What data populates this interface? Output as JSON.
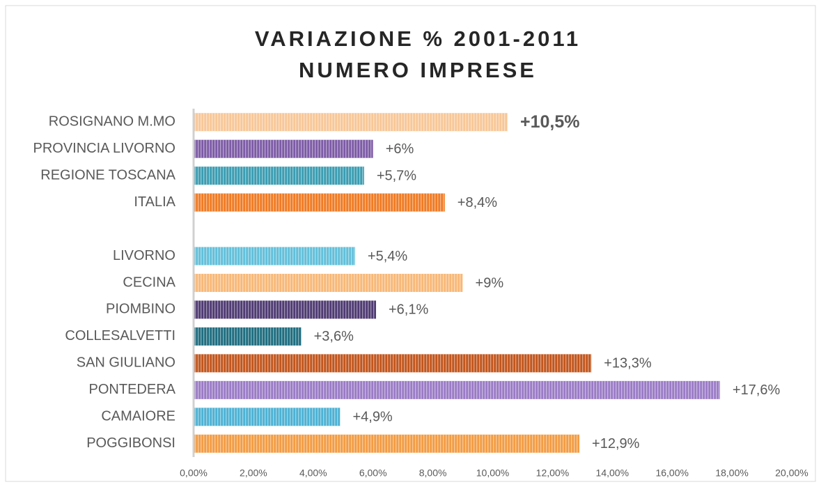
{
  "chart_data": {
    "type": "bar",
    "orientation": "horizontal",
    "title": [
      "VARIAZIONE % 2001-2011",
      "NUMERO IMPRESE"
    ],
    "categories": [
      "ROSIGNANO M.MO",
      "PROVINCIA LIVORNO",
      "REGIONE TOSCANA",
      "ITALIA",
      null,
      "LIVORNO",
      "CECINA",
      "PIOMBINO",
      "COLLESALVETTI",
      "SAN GIULIANO",
      "PONTEDERA",
      "CAMAIORE",
      "POGGIBONSI"
    ],
    "values": [
      10.5,
      6,
      5.7,
      8.4,
      null,
      5.4,
      9,
      6.1,
      3.6,
      13.3,
      17.6,
      4.9,
      12.9
    ],
    "value_labels": [
      "+10,5%",
      "+6%",
      "+5,7%",
      "+8,4%",
      null,
      "+5,4%",
      "+9%",
      "+6,1%",
      "+3,6%",
      "+13,3%",
      "+17,6%",
      "+4,9%",
      "+12,9%"
    ],
    "colors": [
      "#f8c797",
      "#7d5ba6",
      "#3b9db2",
      "#f07b24",
      null,
      "#62c0da",
      "#f8b878",
      "#4f3b72",
      "#1f6e80",
      "#c2561d",
      "#9a7bc6",
      "#4db2d4",
      "#f39c44"
    ],
    "xlim": [
      0,
      20
    ],
    "xticks": [
      {
        "value": 0,
        "label": "0,00%"
      },
      {
        "value": 2,
        "label": "2,00%"
      },
      {
        "value": 4,
        "label": "4,00%"
      },
      {
        "value": 6,
        "label": "6,00%"
      },
      {
        "value": 8,
        "label": "8,00%"
      },
      {
        "value": 10,
        "label": "10,00%"
      },
      {
        "value": 12,
        "label": "12,00%"
      },
      {
        "value": 14,
        "label": "14,00%"
      },
      {
        "value": 16,
        "label": "16,00%"
      },
      {
        "value": 18,
        "label": "18,00%"
      },
      {
        "value": 20,
        "label": "20,00%"
      }
    ],
    "grid": false
  }
}
